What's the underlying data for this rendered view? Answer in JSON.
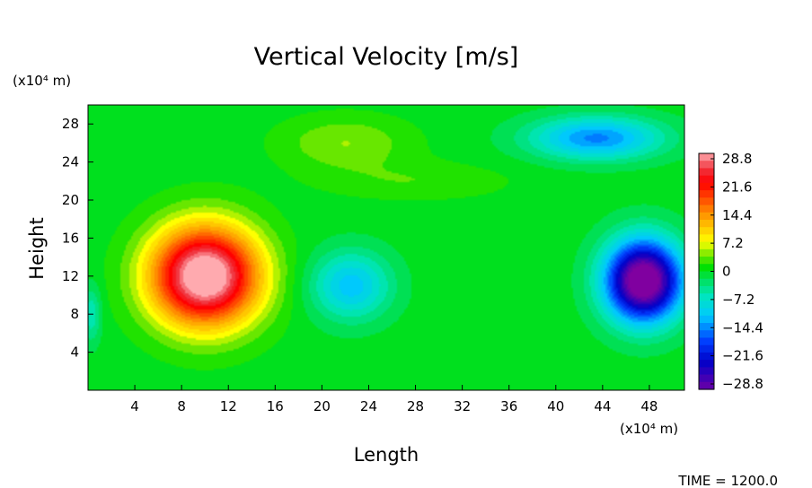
{
  "chart_data": {
    "type": "heatmap",
    "title": "Vertical Velocity [m/s]",
    "xlabel": "Length",
    "ylabel": "Height",
    "x_unit": "(x10⁴ m)",
    "y_unit": "(x10⁴ m)",
    "xlim": [
      0,
      51
    ],
    "ylim": [
      0,
      30
    ],
    "x_ticks": [
      "4",
      "8",
      "12",
      "16",
      "20",
      "24",
      "28",
      "32",
      "36",
      "40",
      "44",
      "48"
    ],
    "y_ticks": [
      "4",
      "8",
      "12",
      "16",
      "20",
      "24",
      "28"
    ],
    "colorbar": {
      "labels": [
        "28.8",
        "21.6",
        "14.4",
        "7.2",
        "0",
        "−7.2",
        "−14.4",
        "−21.6",
        "−28.8"
      ],
      "range": [
        -28.8,
        28.8
      ],
      "colors": [
        "#ff9fa0",
        "#ff0000",
        "#ff8000",
        "#ffff00",
        "#00e000",
        "#00e0e0",
        "#0080ff",
        "#0000c0",
        "#8000a0"
      ]
    },
    "features": [
      {
        "x": 10,
        "y": 12,
        "peak": 28.8,
        "shape": "updraft"
      },
      {
        "x": 47.5,
        "y": 11.5,
        "peak": -30,
        "shape": "downdraft"
      },
      {
        "x": 22.5,
        "y": 11,
        "peak": -11,
        "shape": "weak downdraft"
      },
      {
        "x": 43.5,
        "y": 26.5,
        "peak": -13,
        "shape": "upper downdraft"
      },
      {
        "x": 22,
        "y": 26,
        "peak": 4,
        "shape": "upper updraft"
      }
    ],
    "footer": "TIME = 1200.0"
  }
}
